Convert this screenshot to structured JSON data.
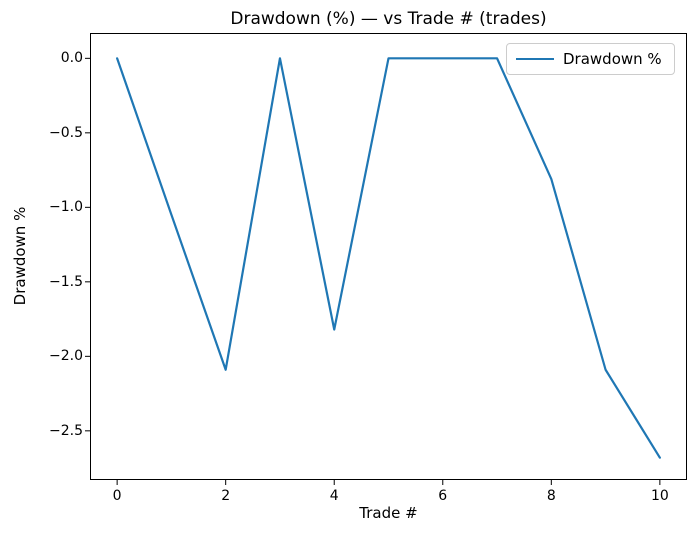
{
  "chart_data": {
    "type": "line",
    "title": "Drawdown (%) — vs Trade # (trades)",
    "xlabel": "Trade #",
    "ylabel": "Drawdown %",
    "legend": {
      "position": "upper right",
      "entries": [
        "Drawdown %"
      ]
    },
    "x": [
      0,
      1,
      2,
      3,
      4,
      5,
      6,
      7,
      8,
      9,
      10
    ],
    "series": [
      {
        "name": "Drawdown %",
        "color": "#1f77b4",
        "values": [
          0.0,
          -1.05,
          -2.09,
          0.0,
          -1.82,
          0.0,
          0.0,
          0.0,
          -0.81,
          -2.09,
          -2.68
        ]
      }
    ],
    "xlim": [
      -0.5,
      10.5
    ],
    "ylim": [
      -2.83,
      0.17
    ],
    "xticks": {
      "values": [
        0,
        2,
        4,
        6,
        8,
        10
      ],
      "labels": [
        "0",
        "2",
        "4",
        "6",
        "8",
        "10"
      ]
    },
    "yticks": {
      "values": [
        0.0,
        -0.5,
        -1.0,
        -1.5,
        -2.0,
        -2.5
      ],
      "labels": [
        "0.0",
        "−0.5",
        "−1.0",
        "−1.5",
        "−2.0",
        "−2.5"
      ]
    },
    "grid": false,
    "spine_color": "#000000",
    "background_color": "#ffffff"
  }
}
